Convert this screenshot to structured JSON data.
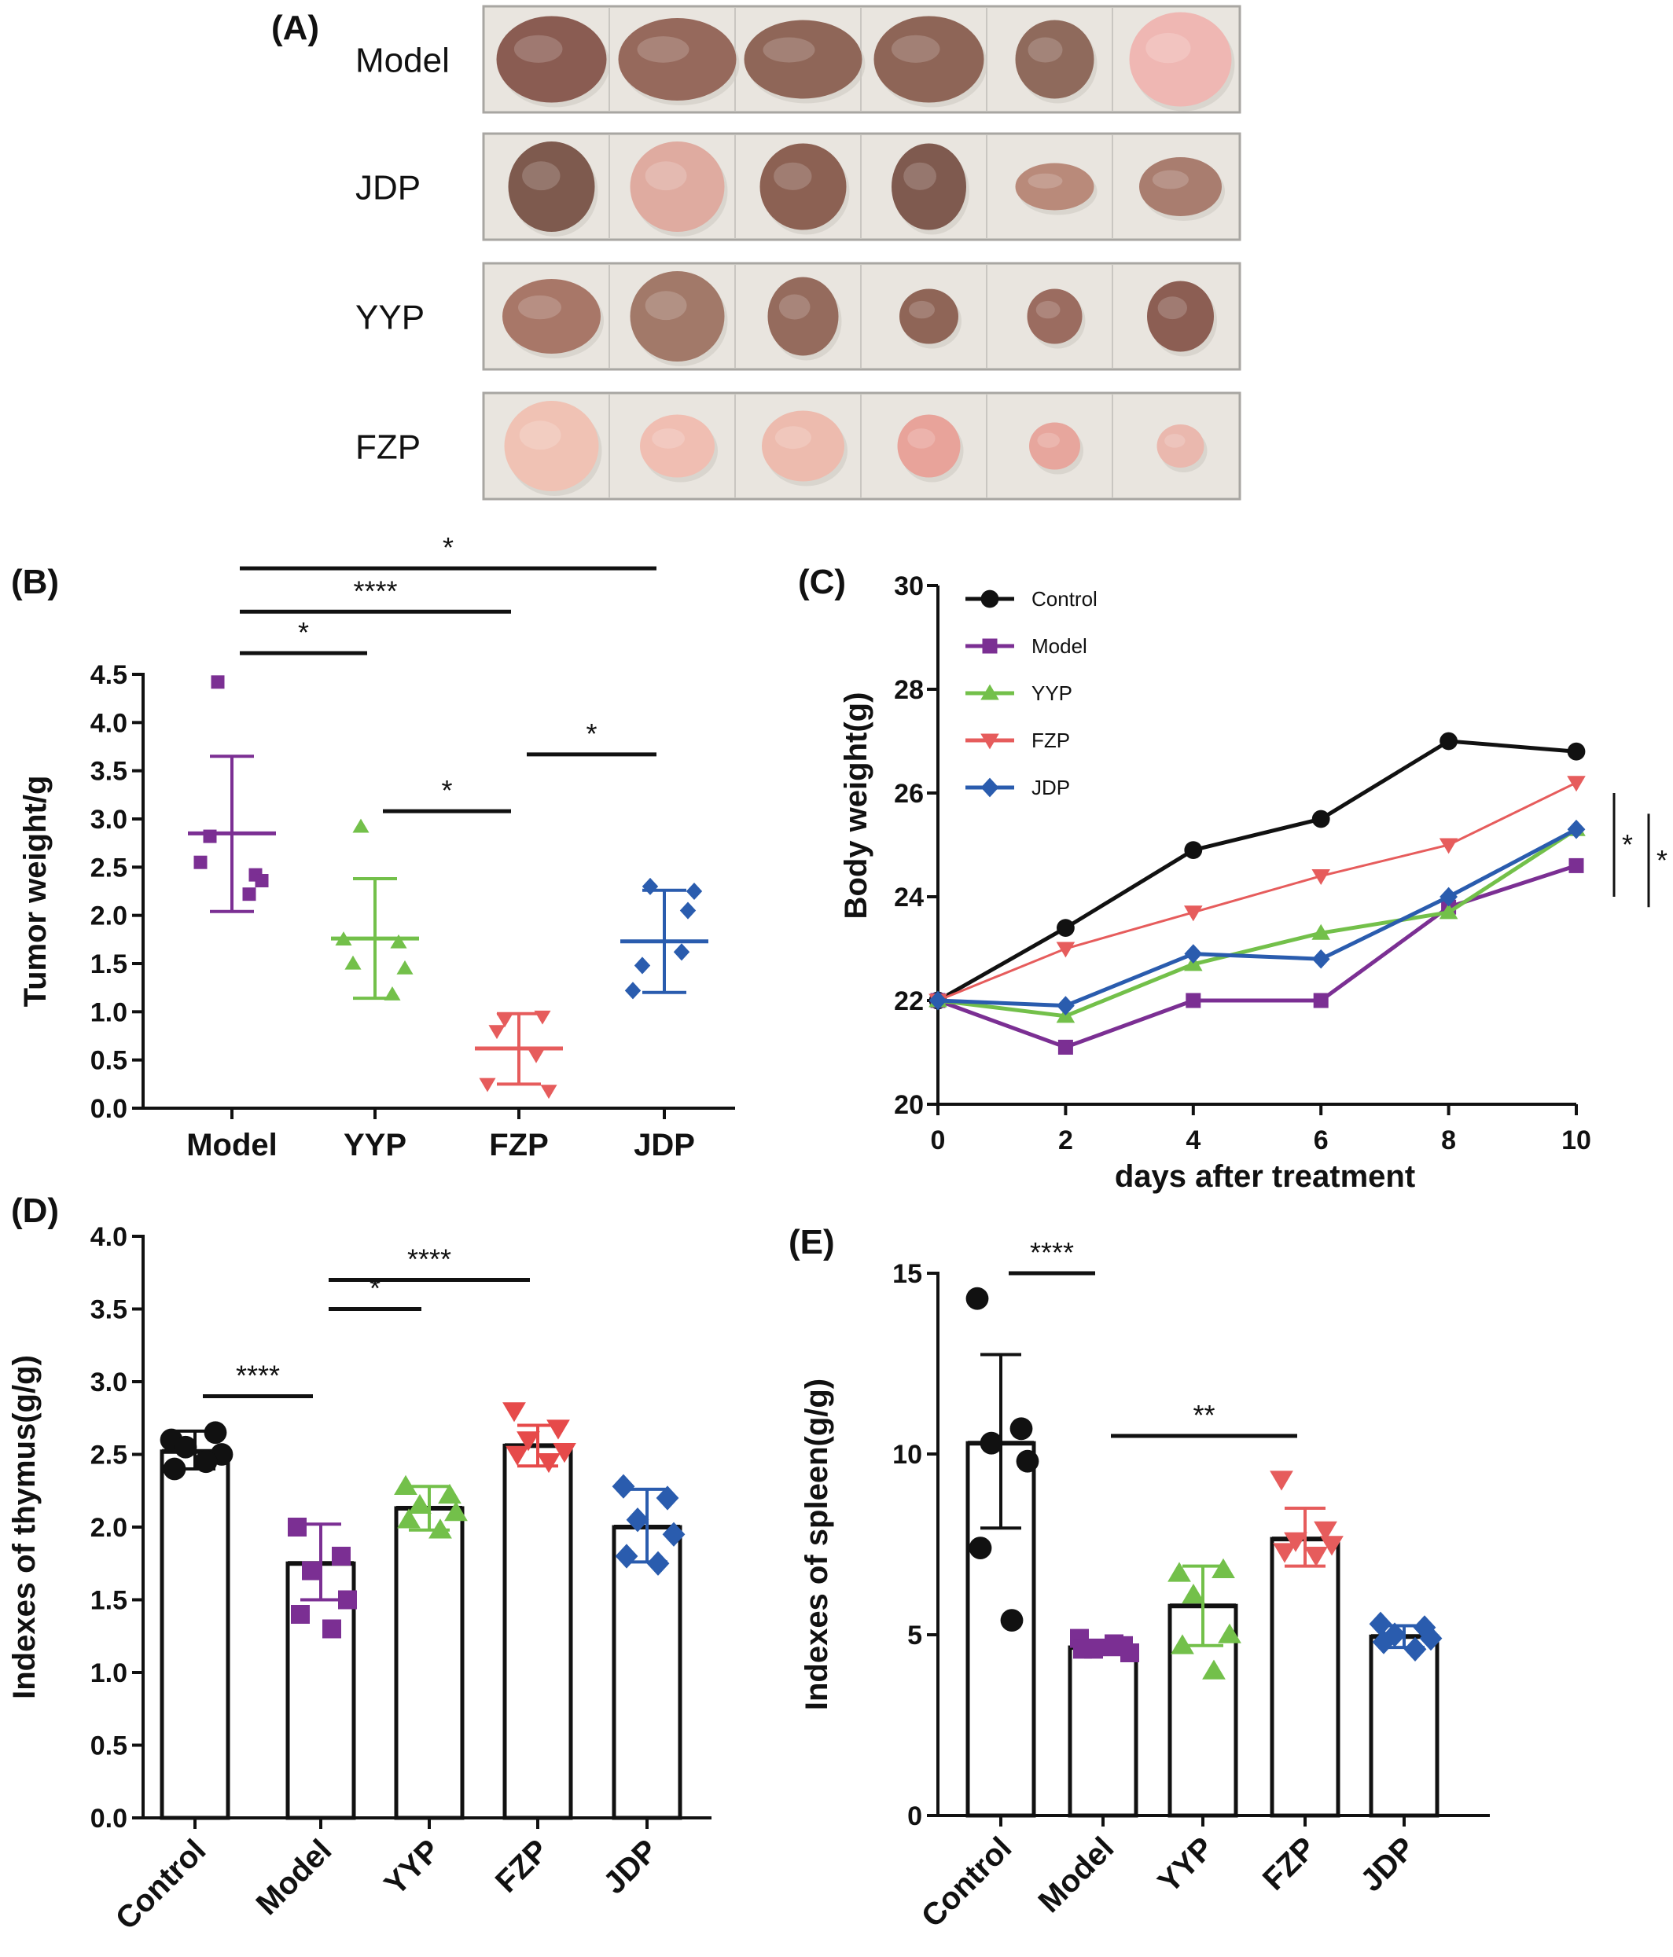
{
  "panel_a": {
    "label": "(A)",
    "rows": [
      {
        "name": "Model",
        "tumors": [
          {
            "w": 140,
            "h": 110,
            "color": "#8a5c52"
          },
          {
            "w": 150,
            "h": 105,
            "color": "#96695c"
          },
          {
            "w": 150,
            "h": 100,
            "color": "#8f6658"
          },
          {
            "w": 140,
            "h": 110,
            "color": "#8e6557"
          },
          {
            "w": 100,
            "h": 100,
            "color": "#8f6a5c"
          },
          {
            "w": 130,
            "h": 120,
            "color": "#efb7b3"
          }
        ]
      },
      {
        "name": "JDP",
        "tumors": [
          {
            "w": 110,
            "h": 115,
            "color": "#7e5a4e"
          },
          {
            "w": 120,
            "h": 115,
            "color": "#dfaba0"
          },
          {
            "w": 110,
            "h": 110,
            "color": "#8c6153"
          },
          {
            "w": 95,
            "h": 110,
            "color": "#7f5a4f"
          },
          {
            "w": 100,
            "h": 60,
            "color": "#b98a7a"
          },
          {
            "w": 105,
            "h": 75,
            "color": "#a97d6f"
          }
        ]
      },
      {
        "name": "YYP",
        "tumors": [
          {
            "w": 125,
            "h": 95,
            "color": "#a87768"
          },
          {
            "w": 120,
            "h": 115,
            "color": "#a27969"
          },
          {
            "w": 90,
            "h": 100,
            "color": "#956b5d"
          },
          {
            "w": 75,
            "h": 70,
            "color": "#8f6557"
          },
          {
            "w": 70,
            "h": 70,
            "color": "#9b6c60"
          },
          {
            "w": 85,
            "h": 90,
            "color": "#8c5e53"
          }
        ]
      },
      {
        "name": "FZP",
        "tumors": [
          {
            "w": 120,
            "h": 115,
            "color": "#f0c2b4"
          },
          {
            "w": 95,
            "h": 80,
            "color": "#f0beb2"
          },
          {
            "w": 105,
            "h": 90,
            "color": "#edbbae"
          },
          {
            "w": 80,
            "h": 80,
            "color": "#e8a39a"
          },
          {
            "w": 65,
            "h": 60,
            "color": "#e7a69d"
          },
          {
            "w": 60,
            "h": 55,
            "color": "#eab8ae"
          }
        ]
      }
    ]
  },
  "chart_data": [
    {
      "panel": "(B)",
      "type": "scatter",
      "ylabel": "Tumor weight/g",
      "ylim": [
        0,
        4.5
      ],
      "yticks": [
        "0.0",
        "0.5",
        "1.0",
        "1.5",
        "2.0",
        "2.5",
        "3.0",
        "3.5",
        "4.0",
        "4.5"
      ],
      "categories": [
        "Model",
        "YYP",
        "FZP",
        "JDP"
      ],
      "groups": [
        {
          "name": "Model",
          "color": "#7b2f93",
          "marker": "square",
          "points": [
            4.42,
            2.42,
            2.82,
            2.22,
            2.55,
            2.36
          ],
          "mean": 2.85,
          "sd_low": 2.04,
          "sd_high": 3.65
        },
        {
          "name": "YYP",
          "color": "#73c04a",
          "marker": "triangle",
          "points": [
            2.92,
            1.72,
            1.5,
            1.18,
            1.75,
            1.45
          ],
          "mean": 1.76,
          "sd_low": 1.14,
          "sd_high": 2.38
        },
        {
          "name": "FZP",
          "color": "#e65c5c",
          "marker": "triangle-down",
          "points": [
            0.92,
            0.95,
            0.8,
            0.55,
            0.25,
            0.18
          ],
          "mean": 0.62,
          "sd_low": 0.25,
          "sd_high": 0.98
        },
        {
          "name": "JDP",
          "color": "#2a5cae",
          "marker": "diamond",
          "points": [
            2.3,
            2.05,
            1.48,
            1.62,
            1.22,
            2.25
          ],
          "mean": 1.73,
          "sd_low": 1.2,
          "sd_high": 2.26
        }
      ],
      "significance": [
        {
          "from": "Model",
          "to": "JDP",
          "y": 5.6,
          "label": "*"
        },
        {
          "from": "Model",
          "to": "FZP",
          "y": 5.15,
          "label": "****"
        },
        {
          "from": "Model",
          "to": "YYP",
          "y": 4.72,
          "label": "*"
        },
        {
          "from": "FZP",
          "to": "JDP",
          "y": 3.67,
          "label": "*"
        },
        {
          "from": "YYP",
          "to": "FZP",
          "y": 3.08,
          "label": "*"
        }
      ]
    },
    {
      "panel": "(C)",
      "type": "line",
      "xlabel": "days after treatment",
      "ylabel": "Body weight(g)",
      "x": [
        0,
        2,
        4,
        6,
        8,
        10
      ],
      "xlim": [
        0,
        10
      ],
      "ylim": [
        20,
        30
      ],
      "xticks": [
        "0",
        "2",
        "4",
        "6",
        "8",
        "10"
      ],
      "yticks": [
        "20",
        "22",
        "24",
        "26",
        "28",
        "30"
      ],
      "legend_position": "top-left",
      "series": [
        {
          "name": "Control",
          "color": "#111111",
          "marker": "circle",
          "values": [
            22.0,
            23.4,
            24.9,
            25.5,
            27.0,
            26.8
          ]
        },
        {
          "name": "Model",
          "color": "#7b2f93",
          "marker": "square",
          "values": [
            22.0,
            21.1,
            22.0,
            22.0,
            23.8,
            24.6
          ]
        },
        {
          "name": "YYP",
          "color": "#73c04a",
          "marker": "triangle",
          "values": [
            22.0,
            21.7,
            22.7,
            23.3,
            23.7,
            25.3
          ]
        },
        {
          "name": "FZP",
          "color": "#e65c5c",
          "marker": "triangle-down",
          "values": [
            22.0,
            23.0,
            23.7,
            24.4,
            25.0,
            26.2
          ]
        },
        {
          "name": "JDP",
          "color": "#2a5cae",
          "marker": "diamond",
          "values": [
            22.0,
            21.9,
            22.9,
            22.8,
            24.0,
            25.3
          ]
        }
      ],
      "significance": [
        {
          "y_top": 26.0,
          "y_bottom": 24.0,
          "label": "*"
        },
        {
          "y_top": 25.6,
          "y_bottom": 23.8,
          "label": "*"
        }
      ]
    },
    {
      "panel": "(D)",
      "type": "bar",
      "ylabel": "Indexes of thymus(g/g)",
      "ylim": [
        0,
        4.0
      ],
      "yticks": [
        "0.0",
        "0.5",
        "1.0",
        "1.5",
        "2.0",
        "2.5",
        "3.0",
        "3.5",
        "4.0"
      ],
      "categories": [
        "Control",
        "Model",
        "YYP",
        "FZP",
        "JDP"
      ],
      "groups": [
        {
          "name": "Control",
          "color": "#111111",
          "marker": "circle",
          "mean": 2.52,
          "sd_low": 2.4,
          "sd_high": 2.66,
          "points": [
            2.6,
            2.65,
            2.55,
            2.5,
            2.4,
            2.45
          ]
        },
        {
          "name": "Model",
          "color": "#7b2f93",
          "marker": "square",
          "mean": 1.75,
          "sd_low": 1.5,
          "sd_high": 2.02,
          "points": [
            2.0,
            1.8,
            1.7,
            1.5,
            1.4,
            1.3
          ]
        },
        {
          "name": "YYP",
          "color": "#73c04a",
          "marker": "triangle",
          "mean": 2.13,
          "sd_low": 1.98,
          "sd_high": 2.28,
          "points": [
            2.28,
            2.22,
            2.15,
            2.1,
            2.05,
            1.98
          ]
        },
        {
          "name": "FZP",
          "color": "#e64a4a",
          "marker": "triangle-down",
          "mean": 2.56,
          "sd_low": 2.42,
          "sd_high": 2.7,
          "points": [
            2.8,
            2.68,
            2.6,
            2.52,
            2.5,
            2.45
          ]
        },
        {
          "name": "JDP",
          "color": "#2a5cae",
          "marker": "diamond",
          "mean": 2.0,
          "sd_low": 1.76,
          "sd_high": 2.26,
          "points": [
            2.28,
            2.2,
            2.05,
            1.95,
            1.8,
            1.75
          ]
        }
      ],
      "significance": [
        {
          "from": "Model",
          "to": "FZP",
          "y": 3.7,
          "label": "****"
        },
        {
          "from": "Model",
          "to": "YYP",
          "y": 3.5,
          "label": "*"
        },
        {
          "from": "Control",
          "to": "Model",
          "y": 2.9,
          "label": "****"
        }
      ]
    },
    {
      "panel": "(E)",
      "type": "bar",
      "ylabel": "Indexes of spleen(g/g)",
      "ylim": [
        0,
        15
      ],
      "yticks": [
        "0",
        "5",
        "10",
        "15"
      ],
      "categories": [
        "Control",
        "Model",
        "YYP",
        "FZP",
        "JDP"
      ],
      "groups": [
        {
          "name": "Control",
          "color": "#111111",
          "marker": "circle",
          "mean": 10.3,
          "sd_low": 7.95,
          "sd_high": 12.75,
          "points": [
            14.3,
            10.7,
            10.3,
            9.8,
            7.4,
            5.4
          ]
        },
        {
          "name": "Model",
          "color": "#7b2f93",
          "marker": "square",
          "mean": 4.65,
          "sd_low": 4.45,
          "sd_high": 4.85,
          "points": [
            4.9,
            4.7,
            4.6,
            4.5,
            4.6,
            4.75
          ]
        },
        {
          "name": "YYP",
          "color": "#73c04a",
          "marker": "triangle",
          "mean": 5.8,
          "sd_low": 4.7,
          "sd_high": 6.9,
          "points": [
            6.7,
            6.8,
            6.1,
            5.0,
            4.7,
            4.0
          ]
        },
        {
          "name": "FZP",
          "color": "#e65c5c",
          "marker": "triangle-down",
          "mean": 7.65,
          "sd_low": 6.9,
          "sd_high": 8.5,
          "points": [
            9.3,
            7.9,
            7.6,
            7.5,
            7.3,
            7.2
          ]
        },
        {
          "name": "JDP",
          "color": "#2a5cae",
          "marker": "diamond",
          "mean": 4.95,
          "sd_low": 4.65,
          "sd_high": 5.25,
          "points": [
            5.3,
            5.2,
            5.0,
            4.9,
            4.8,
            4.6
          ]
        }
      ],
      "significance": [
        {
          "from": "Control",
          "to": "Model",
          "y": 15.0,
          "label": "****"
        },
        {
          "from": "Model",
          "to": "FZP",
          "y": 10.5,
          "label": "**"
        }
      ]
    }
  ]
}
